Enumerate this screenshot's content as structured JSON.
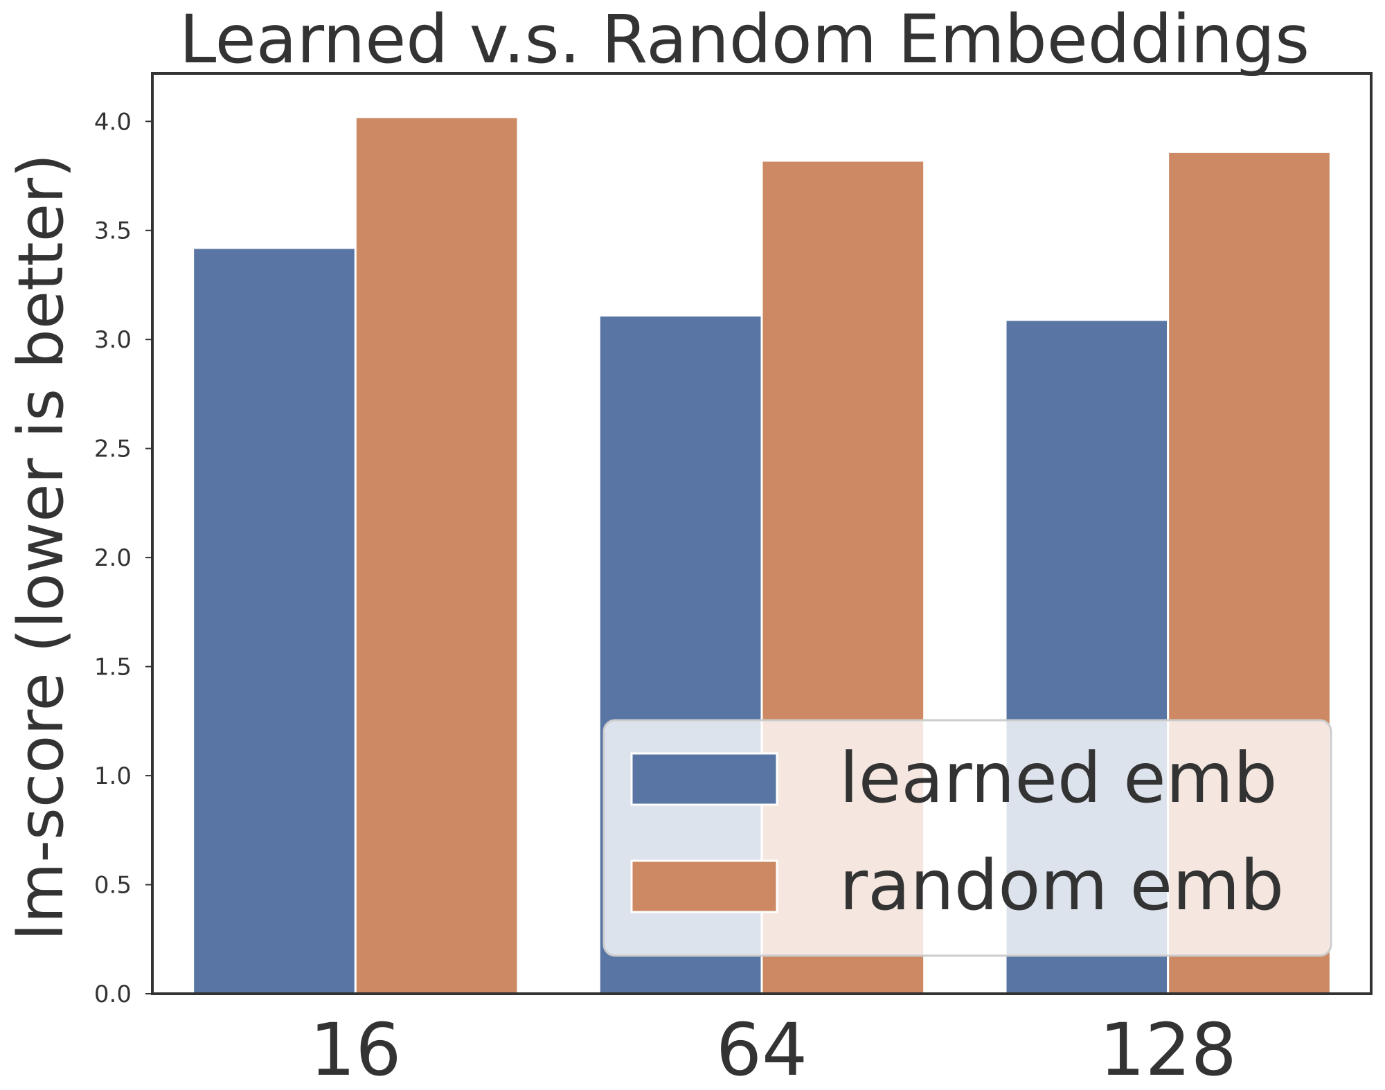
{
  "chart_data": {
    "type": "bar",
    "title": "Learned v.s. Random Embeddings",
    "xlabel": "",
    "ylabel": "lm-score (lower is better)",
    "categories": [
      "16",
      "64",
      "128"
    ],
    "series": [
      {
        "name": "learned emb",
        "color": "#5875a4",
        "values": [
          3.42,
          3.11,
          3.09
        ]
      },
      {
        "name": "random emb",
        "color": "#cc8963",
        "values": [
          4.02,
          3.82,
          3.86
        ]
      }
    ],
    "ylim": [
      0,
      4.22
    ],
    "yticks": [
      "0.0",
      "0.5",
      "1.0",
      "1.5",
      "2.0",
      "2.5",
      "3.0",
      "3.5",
      "4.0"
    ],
    "grid": false,
    "legend_position": "lower-right"
  }
}
